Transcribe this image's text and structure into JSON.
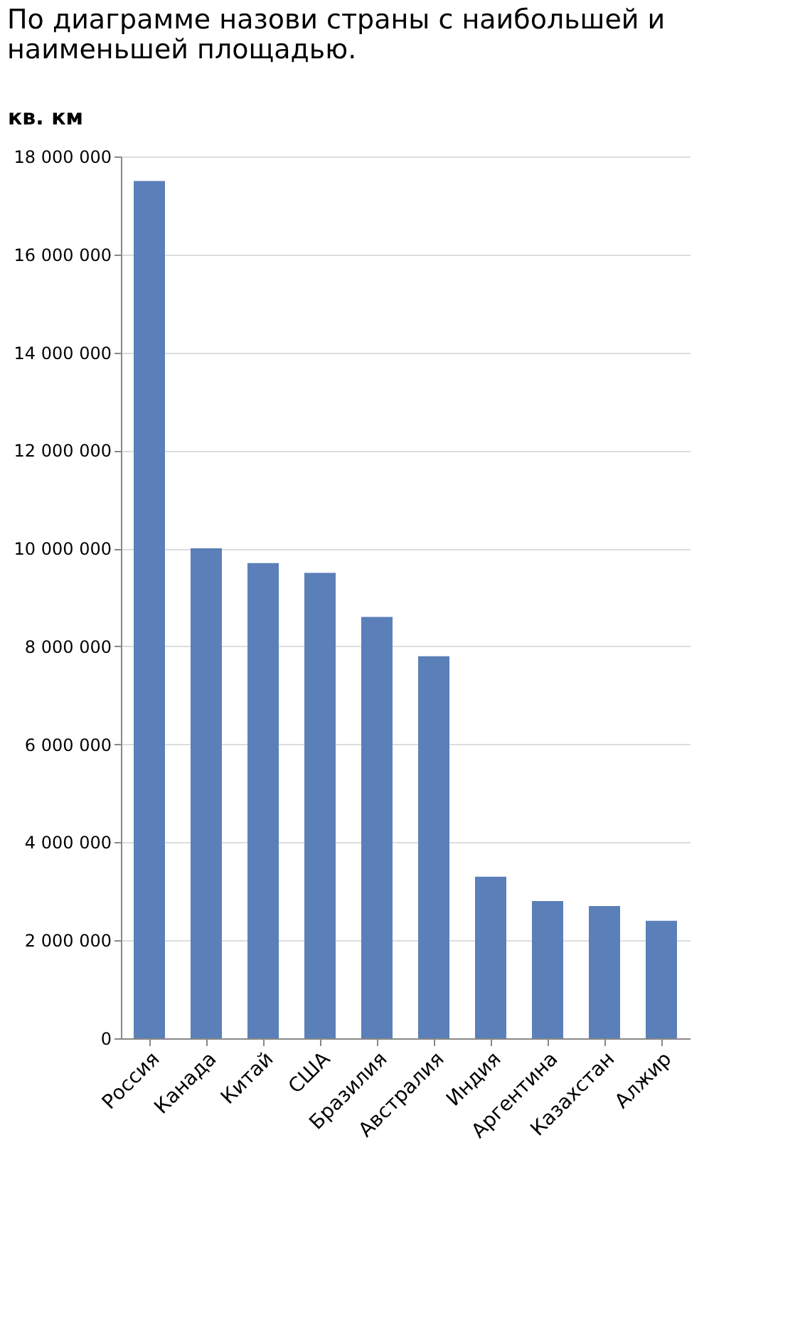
{
  "chart_data": {
    "type": "bar",
    "title": "По диаграмме назови страны с наибольшей и наименьшей площадью.",
    "ylabel": "кв. км",
    "categories": [
      "Россия",
      "Канада",
      "Китай",
      "США",
      "Бразилия",
      "Австралия",
      "Индия",
      "Аргентина",
      "Казахстан",
      "Алжир"
    ],
    "values": [
      17500000,
      10000000,
      9700000,
      9500000,
      8600000,
      7800000,
      3300000,
      2800000,
      2700000,
      2400000
    ],
    "color": "#5b7fb8",
    "ylim": [
      0,
      18000000
    ],
    "yticks": [
      0,
      {
        "value": 2000000,
        "label": "2 000 000"
      },
      {
        "value": 4000000,
        "label": "4 000 000"
      },
      {
        "value": 6000000,
        "label": "6 000 000"
      },
      {
        "value": 8000000,
        "label": "8 000 000"
      },
      {
        "value": 10000000,
        "label": "10 000 000"
      },
      {
        "value": 12000000,
        "label": "12 000 000"
      },
      {
        "value": 14000000,
        "label": "14 000 000"
      },
      {
        "value": 16000000,
        "label": "16 000 000"
      },
      {
        "value": 18000000,
        "label": "18 000 000"
      }
    ],
    "grid": "y"
  }
}
